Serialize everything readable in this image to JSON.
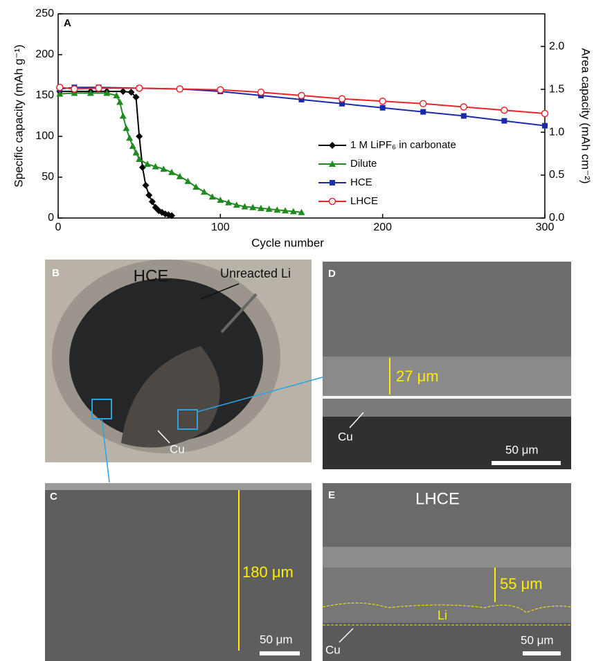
{
  "chart_data": {
    "type": "line",
    "panel_label": "A",
    "xlabel": "Cycle number",
    "ylabel": "Specific capacity (mAh g⁻¹)",
    "y2label": "Area capacity (mAh cm⁻²)",
    "xlim": [
      0,
      300
    ],
    "xticks": [
      0,
      100,
      200,
      300
    ],
    "ylim": [
      0,
      250
    ],
    "yticks": [
      0,
      50,
      100,
      150,
      200,
      250
    ],
    "y2lim": [
      0,
      2.38
    ],
    "y2ticks": [
      {
        "value": 0,
        "label": "0.0"
      },
      {
        "value": 0.5,
        "label": "0.5"
      },
      {
        "value": 1,
        "label": "1.0"
      },
      {
        "value": 1.5,
        "label": "1.5"
      },
      {
        "value": 2,
        "label": "2.0"
      }
    ],
    "grid": false,
    "legend": "center-right",
    "series": [
      {
        "name": "1 M LiPF₆ in carbonate",
        "color": "#000000",
        "marker": "diamond",
        "x": [
          1,
          10,
          20,
          30,
          40,
          45,
          48,
          50,
          52,
          54,
          56,
          58,
          60,
          62,
          64,
          66,
          68,
          70
        ],
        "values": [
          155,
          155,
          155,
          155,
          155,
          154,
          148,
          100,
          62,
          40,
          28,
          20,
          13,
          9,
          7,
          5,
          4,
          3
        ]
      },
      {
        "name": "Dilute",
        "color": "#1f8a1f",
        "marker": "triangle",
        "x": [
          1,
          10,
          20,
          30,
          36,
          38,
          40,
          42,
          44,
          46,
          48,
          50,
          55,
          60,
          65,
          70,
          75,
          80,
          85,
          90,
          95,
          100,
          105,
          110,
          115,
          120,
          125,
          130,
          135,
          140,
          145,
          150
        ],
        "values": [
          152,
          153,
          153,
          153,
          150,
          142,
          125,
          110,
          98,
          88,
          80,
          72,
          66,
          63,
          60,
          56,
          51,
          45,
          38,
          32,
          26,
          22,
          19,
          16,
          14,
          13,
          12,
          11,
          10,
          9,
          8,
          7
        ]
      },
      {
        "name": "HCE",
        "color": "#1a2aa8",
        "marker": "square",
        "x": [
          1,
          10,
          25,
          50,
          75,
          100,
          125,
          150,
          175,
          200,
          225,
          250,
          275,
          300
        ],
        "values": [
          158,
          160,
          160,
          159,
          158,
          155,
          150,
          145,
          140,
          135,
          130,
          125,
          119,
          113
        ]
      },
      {
        "name": "LHCE",
        "color": "#e8262a",
        "marker": "circle",
        "x": [
          1,
          10,
          25,
          50,
          75,
          100,
          125,
          150,
          175,
          200,
          225,
          250,
          275,
          300
        ],
        "values": [
          160,
          158,
          159,
          159,
          158,
          157,
          154,
          150,
          146,
          143,
          140,
          136,
          132,
          128
        ]
      }
    ]
  },
  "panels": {
    "B": {
      "label": "B",
      "title": "HCE",
      "arrow_label": "Unreacted Li",
      "cu": "Cu"
    },
    "C": {
      "label": "C",
      "thickness": "180 μm",
      "scale": "50 μm"
    },
    "D": {
      "label": "D",
      "thickness": "27 μm",
      "cu": "Cu",
      "scale": "50 μm"
    },
    "E": {
      "label": "E",
      "title": "LHCE",
      "thickness": "55 μm",
      "li": "Li",
      "cu": "Cu",
      "scale": "50 μm"
    }
  }
}
